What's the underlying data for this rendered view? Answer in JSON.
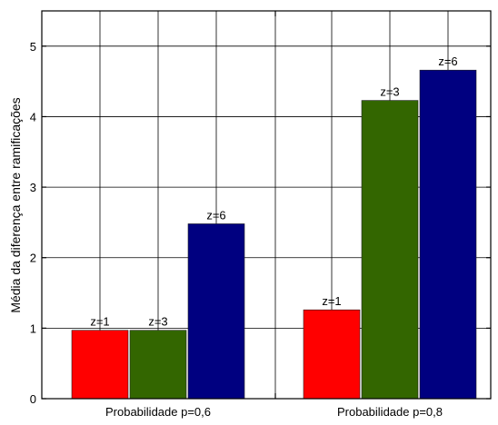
{
  "chart_data": {
    "type": "bar",
    "title": "",
    "xlabel": "",
    "ylabel": "Média da diferença entre ramificações",
    "ylim": [
      0,
      5.5
    ],
    "yticks": [
      0,
      1,
      2,
      3,
      4,
      5
    ],
    "categories": [
      "Probabilidade p=0,6",
      "Probabilidade p=0,8"
    ],
    "grid": true,
    "series": [
      {
        "name": "z=1",
        "color": "#ff0000",
        "values": [
          0.97,
          1.26
        ]
      },
      {
        "name": "z=3",
        "color": "#336600",
        "values": [
          0.97,
          4.23
        ]
      },
      {
        "name": "z=6",
        "color": "#000080",
        "values": [
          2.48,
          4.66
        ]
      }
    ]
  }
}
